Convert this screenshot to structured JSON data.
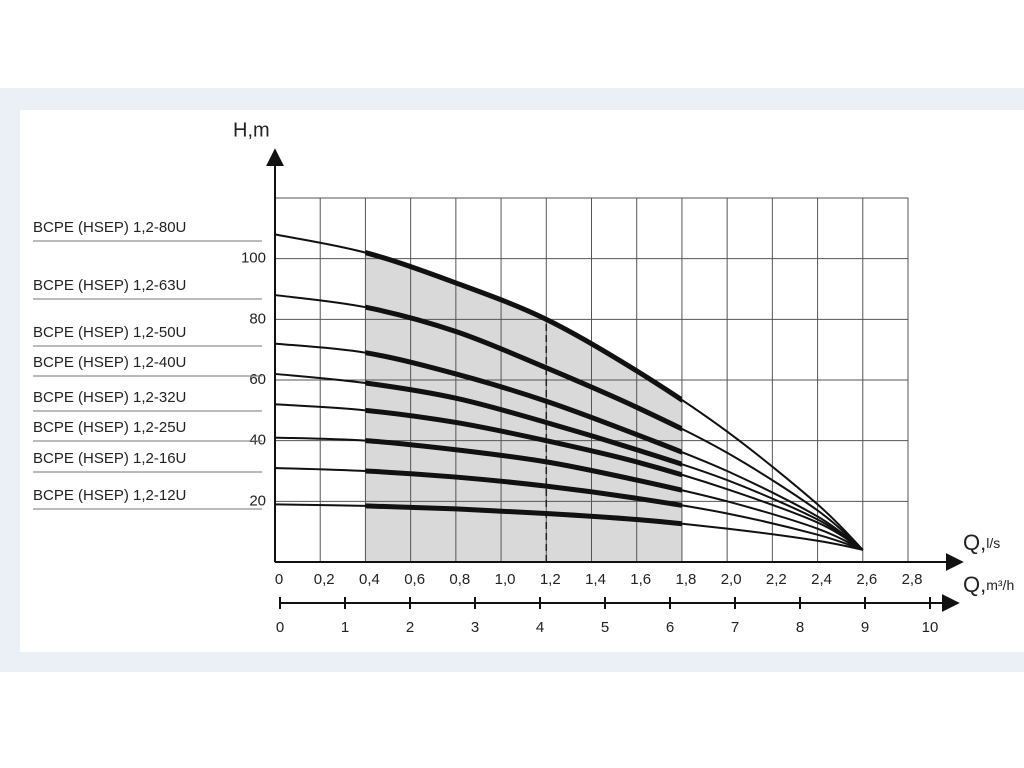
{
  "chart_data": {
    "type": "line",
    "y_label": "H,m",
    "x_label_main": "Q,",
    "x_label_unit": "l/s",
    "x2_label_main": "Q,",
    "x2_label_unit": "m³/h",
    "x": [
      0,
      0.4,
      0.8,
      1.2,
      1.6,
      2.0,
      2.4,
      2.6
    ],
    "series": [
      {
        "name": "BCPE (HSEP) 1,2-80U",
        "color": "#111111",
        "values": [
          108,
          102,
          92,
          80,
          63,
          43,
          19,
          4
        ]
      },
      {
        "name": "BCPE (HSEP) 1,2-63U",
        "color": "#111111",
        "values": [
          88,
          84,
          76,
          64,
          51,
          36,
          17,
          4
        ]
      },
      {
        "name": "BCPE (HSEP) 1,2-50U",
        "color": "#111111",
        "values": [
          72,
          69,
          62,
          53,
          42,
          30,
          15,
          4
        ]
      },
      {
        "name": "BCPE (HSEP) 1,2-40U",
        "color": "#111111",
        "values": [
          62,
          59,
          54,
          46,
          37,
          27,
          14,
          4
        ]
      },
      {
        "name": "BCPE (HSEP) 1,2-32U",
        "color": "#111111",
        "values": [
          52,
          50,
          46,
          40,
          33,
          24,
          13,
          4
        ]
      },
      {
        "name": "BCPE (HSEP) 1,2-25U",
        "color": "#111111",
        "values": [
          41,
          40,
          37,
          33,
          27,
          20,
          11,
          4
        ]
      },
      {
        "name": "BCPE (HSEP) 1,2-16U",
        "color": "#111111",
        "values": [
          31,
          30,
          28,
          25,
          21,
          16,
          9,
          4
        ]
      },
      {
        "name": "BCPE (HSEP) 1,2-12U",
        "color": "#111111",
        "values": [
          19,
          18.5,
          17.5,
          16,
          14,
          11,
          7,
          4
        ]
      }
    ],
    "work_range": [
      0.4,
      1.8
    ],
    "nominal_flow": 1.2,
    "shade_color": "#d9d9d9",
    "xlim": [
      0,
      2.8
    ],
    "xticks": [
      0,
      {
        "value": 0.2,
        "label": "0,2"
      },
      {
        "value": 0.4,
        "label": "0,4"
      },
      {
        "value": 0.6,
        "label": "0,6"
      },
      {
        "value": 0.8,
        "label": "0,8"
      },
      {
        "value": 1,
        "label": "1,0"
      },
      {
        "value": 1.2,
        "label": "1,2"
      },
      {
        "value": 1.4,
        "label": "1,4"
      },
      {
        "value": 1.6,
        "label": "1,6"
      },
      {
        "value": 1.8,
        "label": "1,8"
      },
      {
        "value": 2,
        "label": "2,0"
      },
      {
        "value": 2.2,
        "label": "2,2"
      },
      {
        "value": 2.4,
        "label": "2,4"
      },
      {
        "value": 2.6,
        "label": "2,6"
      },
      {
        "value": 2.8,
        "label": "2,8"
      }
    ],
    "x2lim": [
      0,
      10
    ],
    "x2ticks": [
      0,
      1,
      2,
      3,
      4,
      5,
      6,
      7,
      8,
      9,
      10
    ],
    "ylim": [
      0,
      120
    ],
    "yticks": [
      20,
      40,
      60,
      80,
      100
    ],
    "grid": true
  }
}
